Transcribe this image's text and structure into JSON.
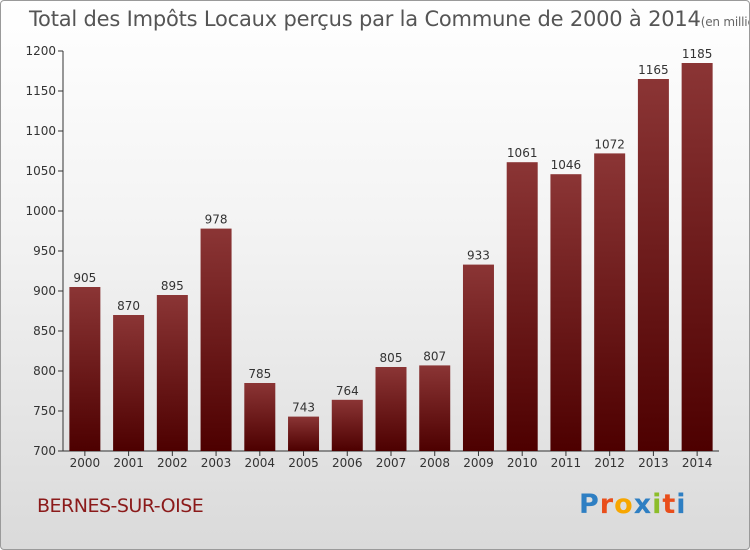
{
  "title": "Total des Impôts Locaux perçus par la Commune de 2000 à 2014",
  "unit_label": "(en milliers d'€)",
  "commune": "BERNES-SUR-OISE",
  "logo": {
    "text": "Proxiti",
    "letters": [
      "P",
      "r",
      "o",
      "x",
      "i",
      "t",
      "i"
    ],
    "colors": [
      "#2e7fc3",
      "#e94e1b",
      "#f7a600",
      "#2e7fc3",
      "#8cbd2a",
      "#e94e1b",
      "#2e7fc3"
    ]
  },
  "colors": {
    "bar_top": "#8b3535",
    "bar_bottom": "#4d0000",
    "axis": "#333333",
    "grid": "#cccccc",
    "text": "#333333"
  },
  "chart_data": {
    "type": "bar",
    "title": "Total des Impôts Locaux perçus par la Commune de 2000 à 2014",
    "xlabel": "",
    "ylabel": "(en milliers d'€)",
    "categories": [
      "2000",
      "2001",
      "2002",
      "2003",
      "2004",
      "2005",
      "2006",
      "2007",
      "2008",
      "2009",
      "2010",
      "2011",
      "2012",
      "2013",
      "2014"
    ],
    "values": [
      905,
      870,
      895,
      978,
      785,
      743,
      764,
      805,
      807,
      933,
      1061,
      1046,
      1072,
      1165,
      1185
    ],
    "ylim": [
      700,
      1200
    ],
    "yticks": [
      700,
      750,
      800,
      850,
      900,
      950,
      1000,
      1050,
      1100,
      1150,
      1200
    ],
    "grid": false
  }
}
